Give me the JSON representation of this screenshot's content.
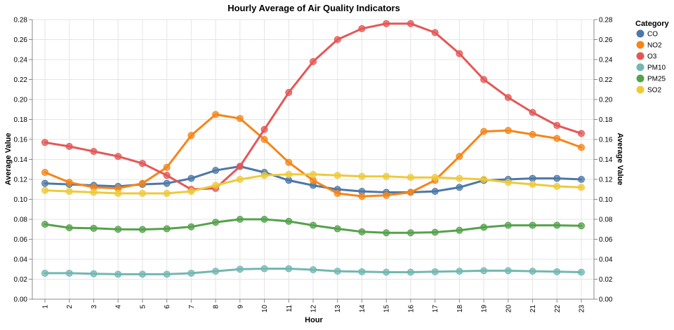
{
  "chart_data": {
    "type": "line",
    "title": "Hourly Average of Air Quality Indicators",
    "xlabel": "Hour",
    "ylabel": "Average Value",
    "ylabel_right": "Average Value",
    "x": [
      1,
      2,
      3,
      4,
      5,
      6,
      7,
      8,
      9,
      10,
      11,
      12,
      13,
      14,
      15,
      16,
      17,
      18,
      19,
      20,
      21,
      22,
      23
    ],
    "ylim": [
      0,
      0.28
    ],
    "yticks": [
      "0.00",
      "0.02",
      "0.04",
      "0.06",
      "0.08",
      "0.10",
      "0.12",
      "0.14",
      "0.16",
      "0.18",
      "0.20",
      "0.22",
      "0.24",
      "0.26",
      "0.28"
    ],
    "grid": true,
    "legend_title": "Category",
    "legend_position": "right",
    "series": [
      {
        "name": "CO",
        "color": "#4c78a8",
        "values": [
          0.116,
          0.115,
          0.114,
          0.113,
          0.115,
          0.116,
          0.121,
          0.129,
          0.133,
          0.127,
          0.119,
          0.114,
          0.11,
          0.108,
          0.107,
          0.107,
          0.108,
          0.112,
          0.119,
          0.12,
          0.121,
          0.121,
          0.12
        ]
      },
      {
        "name": "NO2",
        "color": "#f58518",
        "values": [
          0.127,
          0.117,
          0.112,
          0.111,
          0.116,
          0.132,
          0.164,
          0.185,
          0.181,
          0.16,
          0.137,
          0.119,
          0.106,
          0.103,
          0.104,
          0.107,
          0.119,
          0.143,
          0.168,
          0.169,
          0.165,
          0.161,
          0.152
        ]
      },
      {
        "name": "O3",
        "color": "#e45756",
        "values": [
          0.157,
          0.153,
          0.148,
          0.143,
          0.136,
          0.124,
          0.11,
          0.111,
          0.133,
          0.17,
          0.207,
          0.238,
          0.26,
          0.271,
          0.276,
          0.276,
          0.267,
          0.246,
          0.22,
          0.202,
          0.187,
          0.174,
          0.166
        ]
      },
      {
        "name": "PM10",
        "color": "#72b7b2",
        "values": [
          0.026,
          0.026,
          0.0255,
          0.025,
          0.025,
          0.025,
          0.026,
          0.028,
          0.03,
          0.0305,
          0.0305,
          0.0295,
          0.028,
          0.0275,
          0.027,
          0.027,
          0.0275,
          0.028,
          0.0285,
          0.0285,
          0.028,
          0.0275,
          0.027
        ]
      },
      {
        "name": "PM25",
        "color": "#54a24b",
        "values": [
          0.075,
          0.0715,
          0.071,
          0.07,
          0.0698,
          0.0705,
          0.0725,
          0.077,
          0.08,
          0.08,
          0.078,
          0.074,
          0.0705,
          0.0675,
          0.0665,
          0.0665,
          0.067,
          0.069,
          0.072,
          0.074,
          0.074,
          0.074,
          0.0735
        ]
      },
      {
        "name": "SO2",
        "color": "#eeca3b",
        "values": [
          0.109,
          0.108,
          0.107,
          0.106,
          0.106,
          0.106,
          0.108,
          0.114,
          0.12,
          0.124,
          0.125,
          0.125,
          0.124,
          0.123,
          0.123,
          0.122,
          0.122,
          0.121,
          0.12,
          0.117,
          0.115,
          0.113,
          0.112
        ]
      }
    ]
  }
}
